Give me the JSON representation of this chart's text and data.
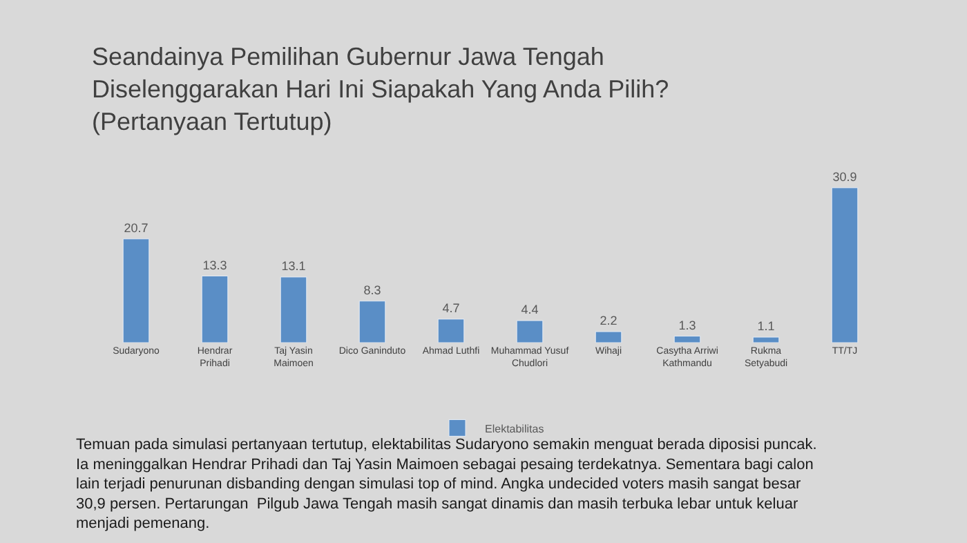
{
  "chart_data": {
    "type": "bar",
    "title": "Seandainya Pemilihan Gubernur Jawa Tengah\nDiselenggarakan Hari Ini Siapakah Yang Anda Pilih?\n(Pertanyaan Tertutup)",
    "categories": [
      "Sudaryono",
      "Hendrar Prihadi",
      "Taj Yasin Maimoen",
      "Dico Ganinduto",
      "Ahmad Luthfi",
      "Muhammad Yusuf Chudlori",
      "Wihaji",
      "Casytha Arriwi Kathmandu",
      "Rukma Setyabudi",
      "TT/TJ"
    ],
    "series": [
      {
        "name": "Elektabilitas",
        "color": "#5a8ec6",
        "values": [
          20.7,
          13.3,
          13.1,
          8.3,
          4.7,
          4.4,
          2.2,
          1.3,
          1.1,
          30.9
        ]
      }
    ],
    "data_labels": true,
    "legend": "bottom",
    "annotations": [
      "Temuan pada simulasi pertanyaan tertutup, elektabilitas Sudaryono semakin menguat berada diposisi puncak.\nIa meninggalkan Hendrar Prihadi dan Taj Yasin Maimoen sebagai pesaing terdekatnya. Sementara bagi calon\nlain terjadi penurunan disbanding dengan simulasi top of mind. Angka undecided voters masih sangat besar\n30,9 persen. Pertarungan  Pilgub Jawa Tengah masih sangat dinamis dan masih terbuka lebar untuk keluar\nmenjadi pemenang."
    ]
  }
}
